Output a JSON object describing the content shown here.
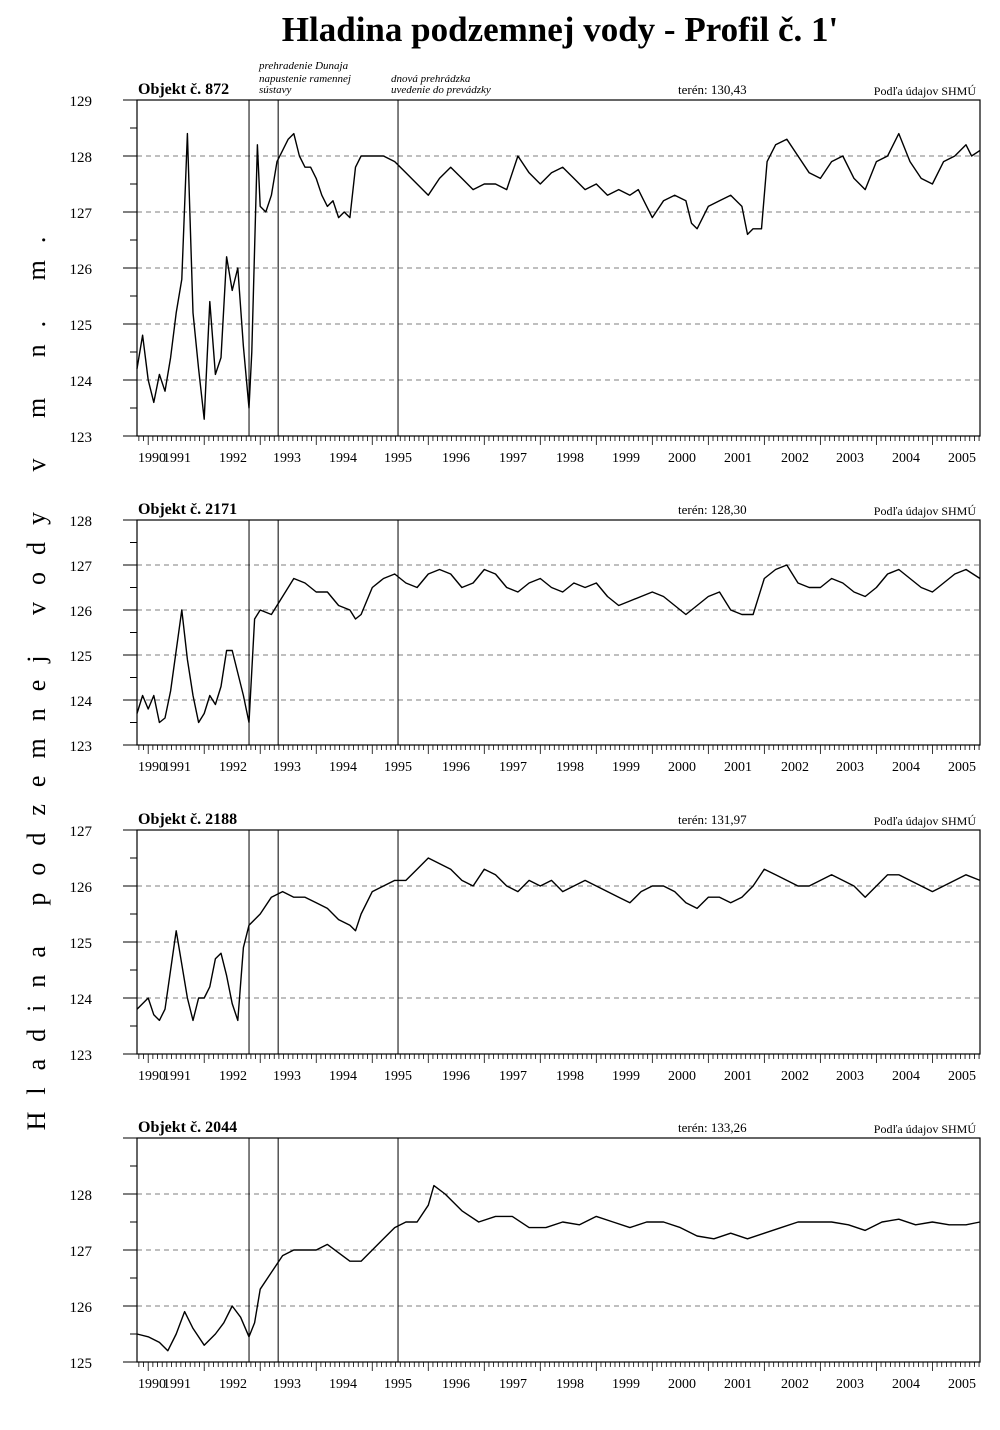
{
  "title": "Hladina podzemnej vody  - Profil č. 1'",
  "ylabel": "Hladina podzemnej vody v m n. m.",
  "events": [
    {
      "date": 1992.8,
      "label": "prehradenie Dunaja"
    },
    {
      "date": 1993.32,
      "label": "napustenie ramennej sústavy"
    },
    {
      "date": 1995.46,
      "label": "dnová prehrádzka uvedenie do prevádzky"
    }
  ],
  "chart_data": [
    {
      "type": "line",
      "title": "Objekt č. 872",
      "teren": "terén: 130,43",
      "source": "Podľa údajov SHMÚ",
      "xlabel": "",
      "ylabel": "",
      "xlim": [
        1990.8,
        2005.85
      ],
      "ylim": [
        123,
        129
      ],
      "xticks": [
        "1990",
        "1991",
        "1992",
        "1993",
        "1994",
        "1995",
        "1996",
        "1997",
        "1998",
        "1999",
        "2000",
        "2001",
        "2002",
        "2003",
        "2004",
        "2005"
      ],
      "yticks": [
        123,
        124,
        125,
        126,
        127,
        128,
        129
      ],
      "grid": "dashed horizontal",
      "series": [
        {
          "x": [
            1990.8,
            1990.9,
            1991.0,
            1991.1,
            1991.2,
            1991.3,
            1991.4,
            1991.5,
            1991.6,
            1991.7,
            1991.8,
            1991.9,
            1992.0,
            1992.1,
            1992.2,
            1992.3,
            1992.4,
            1992.5,
            1992.6,
            1992.7,
            1992.8,
            1992.85,
            1992.95,
            1993.0,
            1993.1,
            1993.2,
            1993.3,
            1993.4,
            1993.5,
            1993.6,
            1993.7,
            1993.8,
            1993.9,
            1994.0,
            1994.1,
            1994.2,
            1994.3,
            1994.4,
            1994.5,
            1994.6,
            1994.7,
            1994.8,
            1995.0,
            1995.2,
            1995.4,
            1995.6,
            1995.8,
            1996.0,
            1996.2,
            1996.4,
            1996.6,
            1996.8,
            1997.0,
            1997.2,
            1997.4,
            1997.6,
            1997.8,
            1998.0,
            1998.2,
            1998.4,
            1998.6,
            1998.8,
            1999.0,
            1999.2,
            1999.4,
            1999.6,
            1999.75,
            1999.85,
            2000.0,
            2000.2,
            2000.4,
            2000.6,
            2000.7,
            2000.8,
            2001.0,
            2001.2,
            2001.4,
            2001.6,
            2001.7,
            2001.8,
            2001.95,
            2002.05,
            2002.2,
            2002.4,
            2002.6,
            2002.8,
            2003.0,
            2003.2,
            2003.4,
            2003.6,
            2003.8,
            2004.0,
            2004.2,
            2004.4,
            2004.6,
            2004.8,
            2005.0,
            2005.2,
            2005.4,
            2005.6,
            2005.7,
            2005.85
          ],
          "y": [
            124.2,
            124.8,
            124.0,
            123.6,
            124.1,
            123.8,
            124.4,
            125.2,
            125.8,
            128.4,
            125.2,
            124.2,
            123.3,
            125.4,
            124.1,
            124.4,
            126.2,
            125.6,
            126.0,
            124.6,
            123.5,
            124.5,
            128.2,
            127.1,
            127.0,
            127.3,
            127.9,
            128.1,
            128.3,
            128.4,
            128.0,
            127.8,
            127.8,
            127.6,
            127.3,
            127.1,
            127.2,
            126.9,
            127.0,
            126.9,
            127.8,
            128.0,
            128.0,
            128.0,
            127.9,
            127.7,
            127.5,
            127.3,
            127.6,
            127.8,
            127.6,
            127.4,
            127.5,
            127.5,
            127.4,
            128.0,
            127.7,
            127.5,
            127.7,
            127.8,
            127.6,
            127.4,
            127.5,
            127.3,
            127.4,
            127.3,
            127.4,
            127.2,
            126.9,
            127.2,
            127.3,
            127.2,
            126.8,
            126.7,
            127.1,
            127.2,
            127.3,
            127.1,
            126.6,
            126.7,
            126.7,
            127.9,
            128.2,
            128.3,
            128.0,
            127.7,
            127.6,
            127.9,
            128.0,
            127.6,
            127.4,
            127.9,
            128.0,
            128.4,
            127.9,
            127.6,
            127.5,
            127.9,
            128.0,
            128.2,
            128.0,
            128.1
          ]
        }
      ]
    },
    {
      "type": "line",
      "title": "Objekt č. 2171",
      "teren": "terén: 128,30",
      "source": "Podľa údajov SHMÚ",
      "xlabel": "",
      "ylabel": "",
      "xlim": [
        1990.8,
        2005.85
      ],
      "ylim": [
        123,
        128
      ],
      "xticks": [
        "1990",
        "1991",
        "1992",
        "1993",
        "1994",
        "1995",
        "1996",
        "1997",
        "1998",
        "1999",
        "2000",
        "2001",
        "2002",
        "2003",
        "2004",
        "2005"
      ],
      "yticks": [
        123,
        124,
        125,
        126,
        127,
        128
      ],
      "grid": "dashed horizontal",
      "series": [
        {
          "x": [
            1990.8,
            1990.9,
            1991.0,
            1991.1,
            1991.2,
            1991.3,
            1991.4,
            1991.5,
            1991.6,
            1991.7,
            1991.8,
            1991.9,
            1992.0,
            1992.1,
            1992.2,
            1992.3,
            1992.4,
            1992.5,
            1992.6,
            1992.7,
            1992.8,
            1992.9,
            1993.0,
            1993.2,
            1993.4,
            1993.6,
            1993.8,
            1994.0,
            1994.2,
            1994.4,
            1994.6,
            1994.7,
            1994.8,
            1995.0,
            1995.2,
            1995.4,
            1995.6,
            1995.8,
            1996.0,
            1996.2,
            1996.4,
            1996.6,
            1996.8,
            1997.0,
            1997.2,
            1997.4,
            1997.6,
            1997.8,
            1998.0,
            1998.2,
            1998.4,
            1998.6,
            1998.8,
            1999.0,
            1999.2,
            1999.4,
            1999.6,
            1999.8,
            2000.0,
            2000.2,
            2000.4,
            2000.6,
            2000.8,
            2001.0,
            2001.2,
            2001.4,
            2001.6,
            2001.8,
            2002.0,
            2002.2,
            2002.4,
            2002.6,
            2002.8,
            2003.0,
            2003.2,
            2003.4,
            2003.6,
            2003.8,
            2004.0,
            2004.2,
            2004.4,
            2004.6,
            2004.8,
            2005.0,
            2005.2,
            2005.4,
            2005.6,
            2005.85
          ],
          "y": [
            123.7,
            124.1,
            123.8,
            124.1,
            123.5,
            123.6,
            124.2,
            125.1,
            126.0,
            124.9,
            124.1,
            123.5,
            123.7,
            124.1,
            123.9,
            124.3,
            125.1,
            125.1,
            124.6,
            124.1,
            123.5,
            125.8,
            126.0,
            125.9,
            126.3,
            126.7,
            126.6,
            126.4,
            126.4,
            126.1,
            126.0,
            125.8,
            125.9,
            126.5,
            126.7,
            126.8,
            126.6,
            126.5,
            126.8,
            126.9,
            126.8,
            126.5,
            126.6,
            126.9,
            126.8,
            126.5,
            126.4,
            126.6,
            126.7,
            126.5,
            126.4,
            126.6,
            126.5,
            126.6,
            126.3,
            126.1,
            126.2,
            126.3,
            126.4,
            126.3,
            126.1,
            125.9,
            126.1,
            126.3,
            126.4,
            126.0,
            125.9,
            125.9,
            126.7,
            126.9,
            127.0,
            126.6,
            126.5,
            126.5,
            126.7,
            126.6,
            126.4,
            126.3,
            126.5,
            126.8,
            126.9,
            126.7,
            126.5,
            126.4,
            126.6,
            126.8,
            126.9,
            126.7
          ]
        }
      ]
    },
    {
      "type": "line",
      "title": "Objekt č. 2188",
      "teren": "terén: 131,97",
      "source": "Podľa údajov SHMÚ",
      "xlabel": "",
      "ylabel": "",
      "xlim": [
        1990.8,
        2005.85
      ],
      "ylim": [
        123,
        127
      ],
      "xticks": [
        "1990",
        "1991",
        "1992",
        "1993",
        "1994",
        "1995",
        "1996",
        "1997",
        "1998",
        "1999",
        "2000",
        "2001",
        "2002",
        "2003",
        "2004",
        "2005"
      ],
      "yticks": [
        123,
        124,
        125,
        126,
        127
      ],
      "grid": "dashed horizontal",
      "series": [
        {
          "x": [
            1990.8,
            1990.9,
            1991.0,
            1991.1,
            1991.2,
            1991.3,
            1991.4,
            1991.5,
            1991.6,
            1991.7,
            1991.8,
            1991.9,
            1992.0,
            1992.1,
            1992.2,
            1992.3,
            1992.4,
            1992.5,
            1992.6,
            1992.7,
            1992.8,
            1992.9,
            1993.0,
            1993.2,
            1993.4,
            1993.6,
            1993.8,
            1994.0,
            1994.2,
            1994.4,
            1994.6,
            1994.7,
            1994.8,
            1995.0,
            1995.2,
            1995.4,
            1995.6,
            1995.8,
            1996.0,
            1996.2,
            1996.4,
            1996.6,
            1996.8,
            1997.0,
            1997.2,
            1997.4,
            1997.6,
            1997.8,
            1998.0,
            1998.2,
            1998.4,
            1998.6,
            1998.8,
            1999.0,
            1999.2,
            1999.4,
            1999.6,
            1999.8,
            2000.0,
            2000.2,
            2000.4,
            2000.6,
            2000.8,
            2001.0,
            2001.2,
            2001.4,
            2001.6,
            2001.8,
            2002.0,
            2002.2,
            2002.4,
            2002.6,
            2002.8,
            2003.0,
            2003.2,
            2003.4,
            2003.6,
            2003.8,
            2004.0,
            2004.2,
            2004.4,
            2004.6,
            2004.8,
            2005.0,
            2005.2,
            2005.4,
            2005.6,
            2005.85
          ],
          "y": [
            123.8,
            123.9,
            124.0,
            123.7,
            123.6,
            123.8,
            124.5,
            125.2,
            124.6,
            124.0,
            123.6,
            124.0,
            124.0,
            124.2,
            124.7,
            124.8,
            124.4,
            123.9,
            123.6,
            124.9,
            125.3,
            125.4,
            125.5,
            125.8,
            125.9,
            125.8,
            125.8,
            125.7,
            125.6,
            125.4,
            125.3,
            125.2,
            125.5,
            125.9,
            126.0,
            126.1,
            126.1,
            126.3,
            126.5,
            126.4,
            126.3,
            126.1,
            126.0,
            126.3,
            126.2,
            126.0,
            125.9,
            126.1,
            126.0,
            126.1,
            125.9,
            126.0,
            126.1,
            126.0,
            125.9,
            125.8,
            125.7,
            125.9,
            126.0,
            126.0,
            125.9,
            125.7,
            125.6,
            125.8,
            125.8,
            125.7,
            125.8,
            126.0,
            126.3,
            126.2,
            126.1,
            126.0,
            126.0,
            126.1,
            126.2,
            126.1,
            126.0,
            125.8,
            126.0,
            126.2,
            126.2,
            126.1,
            126.0,
            125.9,
            126.0,
            126.1,
            126.2,
            126.1
          ]
        }
      ]
    },
    {
      "type": "line",
      "title": "Objekt č. 2044",
      "teren": "terén: 133,26",
      "source": "Podľa údajov SHMÚ",
      "xlabel": "",
      "ylabel": "",
      "xlim": [
        1990.8,
        2005.85
      ],
      "ylim": [
        125,
        129
      ],
      "xticks": [
        "1990",
        "1991",
        "1992",
        "1993",
        "1994",
        "1995",
        "1996",
        "1997",
        "1998",
        "1999",
        "2000",
        "2001",
        "2002",
        "2003",
        "2004",
        "2005"
      ],
      "yticks": [
        125,
        126,
        127,
        128
      ],
      "grid": "dashed horizontal",
      "series": [
        {
          "x": [
            1990.8,
            1991.0,
            1991.2,
            1991.35,
            1991.5,
            1991.65,
            1991.8,
            1992.0,
            1992.2,
            1992.35,
            1992.5,
            1992.65,
            1992.8,
            1992.9,
            1993.0,
            1993.2,
            1993.4,
            1993.6,
            1993.8,
            1994.0,
            1994.2,
            1994.4,
            1994.6,
            1994.8,
            1995.0,
            1995.2,
            1995.4,
            1995.6,
            1995.8,
            1996.0,
            1996.1,
            1996.3,
            1996.6,
            1996.9,
            1997.2,
            1997.5,
            1997.8,
            1998.1,
            1998.4,
            1998.7,
            1999.0,
            1999.3,
            1999.6,
            1999.9,
            2000.2,
            2000.5,
            2000.8,
            2001.1,
            2001.4,
            2001.7,
            2002.0,
            2002.3,
            2002.6,
            2002.9,
            2003.2,
            2003.5,
            2003.8,
            2004.1,
            2004.4,
            2004.7,
            2005.0,
            2005.3,
            2005.6,
            2005.85
          ],
          "y": [
            125.5,
            125.45,
            125.35,
            125.2,
            125.5,
            125.9,
            125.6,
            125.3,
            125.5,
            125.7,
            126.0,
            125.8,
            125.45,
            125.7,
            126.3,
            126.6,
            126.9,
            127.0,
            127.0,
            127.0,
            127.1,
            126.95,
            126.8,
            126.8,
            127.0,
            127.2,
            127.4,
            127.5,
            127.5,
            127.8,
            128.15,
            128.0,
            127.7,
            127.5,
            127.6,
            127.6,
            127.4,
            127.4,
            127.5,
            127.45,
            127.6,
            127.5,
            127.4,
            127.5,
            127.5,
            127.4,
            127.25,
            127.2,
            127.3,
            127.2,
            127.3,
            127.4,
            127.5,
            127.5,
            127.5,
            127.45,
            127.35,
            127.5,
            127.55,
            127.45,
            127.5,
            127.45,
            127.45,
            127.5
          ]
        }
      ]
    }
  ]
}
